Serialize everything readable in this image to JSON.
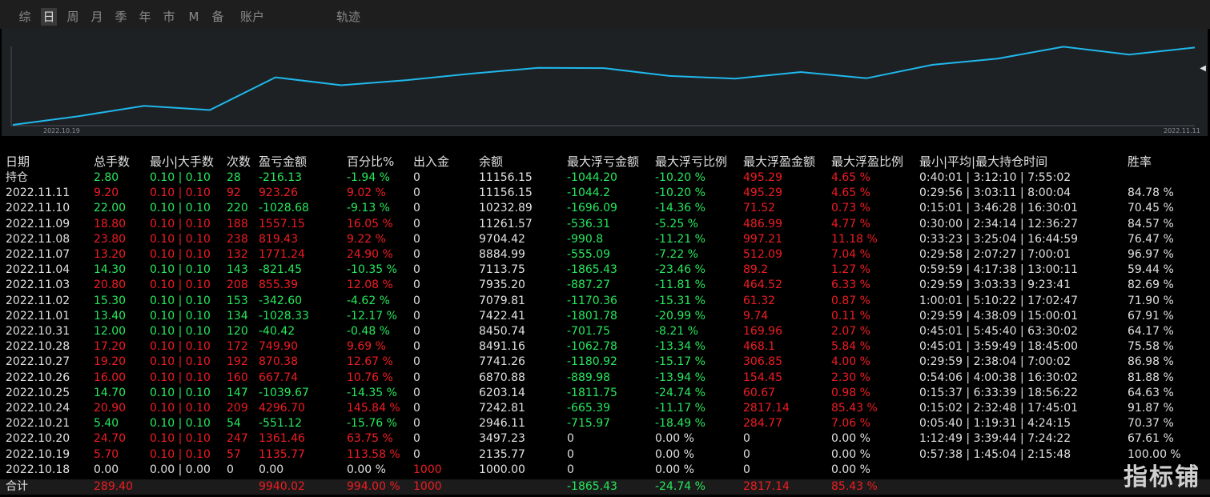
{
  "tabs": [
    {
      "label": "综",
      "active": false
    },
    {
      "label": "日",
      "active": true
    },
    {
      "label": "周",
      "active": false
    },
    {
      "label": "月",
      "active": false
    },
    {
      "label": "季",
      "active": false
    },
    {
      "label": "年",
      "active": false
    },
    {
      "label": "市",
      "active": false
    },
    {
      "label": "M",
      "active": false
    },
    {
      "label": "备",
      "active": false
    },
    {
      "label": "账户",
      "active": false
    },
    {
      "label": "轨迹",
      "active": false
    }
  ],
  "chart": {
    "x_start_label": "2022.10.19",
    "x_end_label": "2022.11.11",
    "line_color": "#1fb8ec",
    "collapse_icon": "triangle-left-icon"
  },
  "chart_data": {
    "type": "line",
    "x_start": "2022.10.19",
    "x_end": "2022.11.11",
    "series": [
      {
        "values": [
          1000,
          2135.77,
          3497.23,
          2946.11,
          7242.81,
          6203.14,
          6870.88,
          7741.26,
          8491.16,
          8450.74,
          7422.41,
          7079.81,
          7935.2,
          7113.75,
          8884.99,
          9704.42,
          11261.57,
          10232.89,
          11156.15
        ]
      }
    ]
  },
  "table": {
    "headers": [
      "日期",
      "总手数",
      "最小|大手数",
      "次数",
      "盈亏金额",
      "百分比%",
      "出入金",
      "余额",
      "最大浮亏金额",
      "最大浮亏比例",
      "最大浮盈金额",
      "最大浮盈比例",
      "最小|平均|最大持仓时间",
      "胜率"
    ],
    "rows": [
      {
        "date": "持仓",
        "lots": "2.80",
        "minmax": "0.10 | 0.10",
        "count": "28",
        "pnl": "-216.13",
        "pct": "-1.94 %",
        "flow": "0",
        "balance": "11156.15",
        "maxloss": "-1044.20",
        "maxlosspct": "-10.20 %",
        "maxprofit": "495.29",
        "maxprofitpct": "4.65 %",
        "hold": "0:40:01 | 3:12:10 | 7:55:02",
        "win": ""
      },
      {
        "date": "2022.11.11",
        "lots": "9.20",
        "minmax": "0.10 | 0.10",
        "count": "92",
        "pnl": "923.26",
        "pct": "9.02 %",
        "flow": "0",
        "balance": "11156.15",
        "maxloss": "-1044.2",
        "maxlosspct": "-10.20 %",
        "maxprofit": "495.29",
        "maxprofitpct": "4.65 %",
        "hold": "0:29:56 | 3:03:11 | 8:00:04",
        "win": "84.78 %"
      },
      {
        "date": "2022.11.10",
        "lots": "22.00",
        "minmax": "0.10 | 0.10",
        "count": "220",
        "pnl": "-1028.68",
        "pct": "-9.13 %",
        "flow": "0",
        "balance": "10232.89",
        "maxloss": "-1696.09",
        "maxlosspct": "-14.36 %",
        "maxprofit": "71.52",
        "maxprofitpct": "0.73 %",
        "hold": "0:15:01 | 3:46:28 | 16:30:01",
        "win": "70.45 %"
      },
      {
        "date": "2022.11.09",
        "lots": "18.80",
        "minmax": "0.10 | 0.10",
        "count": "188",
        "pnl": "1557.15",
        "pct": "16.05 %",
        "flow": "0",
        "balance": "11261.57",
        "maxloss": "-536.31",
        "maxlosspct": "-5.25 %",
        "maxprofit": "486.99",
        "maxprofitpct": "4.77 %",
        "hold": "0:30:00 | 2:34:14 | 12:36:27",
        "win": "84.57 %"
      },
      {
        "date": "2022.11.08",
        "lots": "23.80",
        "minmax": "0.10 | 0.10",
        "count": "238",
        "pnl": "819.43",
        "pct": "9.22 %",
        "flow": "0",
        "balance": "9704.42",
        "maxloss": "-990.8",
        "maxlosspct": "-11.21 %",
        "maxprofit": "997.21",
        "maxprofitpct": "11.18 %",
        "hold": "0:33:23 | 3:25:04 | 16:44:59",
        "win": "76.47 %"
      },
      {
        "date": "2022.11.07",
        "lots": "13.20",
        "minmax": "0.10 | 0.10",
        "count": "132",
        "pnl": "1771.24",
        "pct": "24.90 %",
        "flow": "0",
        "balance": "8884.99",
        "maxloss": "-555.09",
        "maxlosspct": "-7.22 %",
        "maxprofit": "512.09",
        "maxprofitpct": "7.04 %",
        "hold": "0:29:58 | 2:07:27 | 7:00:01",
        "win": "96.97 %"
      },
      {
        "date": "2022.11.04",
        "lots": "14.30",
        "minmax": "0.10 | 0.10",
        "count": "143",
        "pnl": "-821.45",
        "pct": "-10.35 %",
        "flow": "0",
        "balance": "7113.75",
        "maxloss": "-1865.43",
        "maxlosspct": "-23.46 %",
        "maxprofit": "89.2",
        "maxprofitpct": "1.27 %",
        "hold": "0:59:59 | 4:17:38 | 13:00:11",
        "win": "59.44 %"
      },
      {
        "date": "2022.11.03",
        "lots": "20.80",
        "minmax": "0.10 | 0.10",
        "count": "208",
        "pnl": "855.39",
        "pct": "12.08 %",
        "flow": "0",
        "balance": "7935.20",
        "maxloss": "-887.27",
        "maxlosspct": "-11.81 %",
        "maxprofit": "464.52",
        "maxprofitpct": "6.33 %",
        "hold": "0:29:59 | 3:03:33 | 9:23:41",
        "win": "82.69 %"
      },
      {
        "date": "2022.11.02",
        "lots": "15.30",
        "minmax": "0.10 | 0.10",
        "count": "153",
        "pnl": "-342.60",
        "pct": "-4.62 %",
        "flow": "0",
        "balance": "7079.81",
        "maxloss": "-1170.36",
        "maxlosspct": "-15.31 %",
        "maxprofit": "61.32",
        "maxprofitpct": "0.87 %",
        "hold": "1:00:01 | 5:10:22 | 17:02:47",
        "win": "71.90 %"
      },
      {
        "date": "2022.11.01",
        "lots": "13.40",
        "minmax": "0.10 | 0.10",
        "count": "134",
        "pnl": "-1028.33",
        "pct": "-12.17 %",
        "flow": "0",
        "balance": "7422.41",
        "maxloss": "-1801.78",
        "maxlosspct": "-20.99 %",
        "maxprofit": "9.74",
        "maxprofitpct": "0.11 %",
        "hold": "0:29:59 | 4:38:09 | 15:00:01",
        "win": "67.91 %"
      },
      {
        "date": "2022.10.31",
        "lots": "12.00",
        "minmax": "0.10 | 0.10",
        "count": "120",
        "pnl": "-40.42",
        "pct": "-0.48 %",
        "flow": "0",
        "balance": "8450.74",
        "maxloss": "-701.75",
        "maxlosspct": "-8.21 %",
        "maxprofit": "169.96",
        "maxprofitpct": "2.07 %",
        "hold": "0:45:01 | 5:45:40 | 63:30:02",
        "win": "64.17 %"
      },
      {
        "date": "2022.10.28",
        "lots": "17.20",
        "minmax": "0.10 | 0.10",
        "count": "172",
        "pnl": "749.90",
        "pct": "9.69 %",
        "flow": "0",
        "balance": "8491.16",
        "maxloss": "-1062.78",
        "maxlosspct": "-13.34 %",
        "maxprofit": "468.1",
        "maxprofitpct": "5.84 %",
        "hold": "0:45:01 | 3:59:49 | 18:45:00",
        "win": "75.58 %"
      },
      {
        "date": "2022.10.27",
        "lots": "19.20",
        "minmax": "0.10 | 0.10",
        "count": "192",
        "pnl": "870.38",
        "pct": "12.67 %",
        "flow": "0",
        "balance": "7741.26",
        "maxloss": "-1180.92",
        "maxlosspct": "-15.17 %",
        "maxprofit": "306.85",
        "maxprofitpct": "4.00 %",
        "hold": "0:29:59 | 2:38:04 | 7:00:02",
        "win": "86.98 %"
      },
      {
        "date": "2022.10.26",
        "lots": "16.00",
        "minmax": "0.10 | 0.10",
        "count": "160",
        "pnl": "667.74",
        "pct": "10.76 %",
        "flow": "0",
        "balance": "6870.88",
        "maxloss": "-889.98",
        "maxlosspct": "-13.94 %",
        "maxprofit": "154.45",
        "maxprofitpct": "2.30 %",
        "hold": "0:54:06 | 4:00:38 | 16:30:02",
        "win": "81.88 %"
      },
      {
        "date": "2022.10.25",
        "lots": "14.70",
        "minmax": "0.10 | 0.10",
        "count": "147",
        "pnl": "-1039.67",
        "pct": "-14.35 %",
        "flow": "0",
        "balance": "6203.14",
        "maxloss": "-1811.75",
        "maxlosspct": "-24.74 %",
        "maxprofit": "60.67",
        "maxprofitpct": "0.98 %",
        "hold": "0:15:37 | 6:33:39 | 18:56:22",
        "win": "64.63 %"
      },
      {
        "date": "2022.10.24",
        "lots": "20.90",
        "minmax": "0.10 | 0.10",
        "count": "209",
        "pnl": "4296.70",
        "pct": "145.84 %",
        "flow": "0",
        "balance": "7242.81",
        "maxloss": "-665.39",
        "maxlosspct": "-11.17 %",
        "maxprofit": "2817.14",
        "maxprofitpct": "85.43 %",
        "hold": "0:15:02 | 2:32:48 | 17:45:01",
        "win": "91.87 %"
      },
      {
        "date": "2022.10.21",
        "lots": "5.40",
        "minmax": "0.10 | 0.10",
        "count": "54",
        "pnl": "-551.12",
        "pct": "-15.76 %",
        "flow": "0",
        "balance": "2946.11",
        "maxloss": "-715.97",
        "maxlosspct": "-18.49 %",
        "maxprofit": "284.77",
        "maxprofitpct": "7.06 %",
        "hold": "0:05:40 | 1:19:31 | 4:24:15",
        "win": "70.37 %"
      },
      {
        "date": "2022.10.20",
        "lots": "24.70",
        "minmax": "0.10 | 0.10",
        "count": "247",
        "pnl": "1361.46",
        "pct": "63.75 %",
        "flow": "0",
        "balance": "3497.23",
        "maxloss": "0",
        "maxlosspct": "0.00 %",
        "maxprofit": "0",
        "maxprofitpct": "0.00 %",
        "hold": "1:12:49 | 3:39:44 | 7:24:22",
        "win": "67.61 %"
      },
      {
        "date": "2022.10.19",
        "lots": "5.70",
        "minmax": "0.10 | 0.10",
        "count": "57",
        "pnl": "1135.77",
        "pct": "113.58 %",
        "flow": "0",
        "balance": "2135.77",
        "maxloss": "0",
        "maxlosspct": "0.00 %",
        "maxprofit": "0",
        "maxprofitpct": "0.00 %",
        "hold": "0:57:38 | 1:45:04 | 2:15:48",
        "win": "100.00 %"
      },
      {
        "date": "2022.10.18",
        "lots": "0.00",
        "minmax": "0.00 | 0.00",
        "count": "0",
        "pnl": "0.00",
        "pct": "0.00 %",
        "flow": "1000",
        "balance": "1000.00",
        "maxloss": "0",
        "maxlosspct": "0.00 %",
        "maxprofit": "0",
        "maxprofitpct": "0.00 %",
        "hold": "",
        "win": ""
      }
    ],
    "total": {
      "date": "合计",
      "lots": "289.40",
      "minmax": "",
      "count": "",
      "pnl": "9940.02",
      "pct": "994.00 %",
      "flow": "1000",
      "balance": "",
      "maxloss": "-1865.43",
      "maxlosspct": "-24.74 %",
      "maxprofit": "2817.14",
      "maxprofitpct": "85.43 %",
      "hold": "",
      "win": ""
    }
  },
  "colors": {
    "positive": "#f01c22",
    "negative": "#26e85c",
    "neutral": "#e0e0e0",
    "chart_line": "#1fb8ec",
    "chart_bg": "#1e2124"
  },
  "watermark": "指标铺"
}
